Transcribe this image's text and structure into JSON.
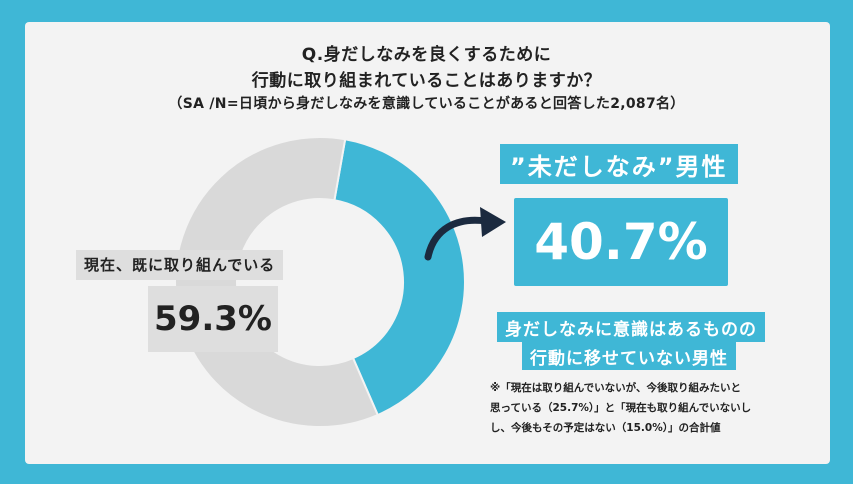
{
  "colors": {
    "background": "#3fb7d6",
    "accent": "#3fb7d6",
    "done": "#d9d9d9",
    "arrow": "#1b2a3f"
  },
  "title": {
    "line1": "Q.身だしなみを良くするために",
    "line2": "行動に取り組まれていることはありますか？",
    "line3": "（SA /N=日頃から身だしなみを意識していることがあると回答した2,087名）"
  },
  "chart_data": {
    "type": "pie",
    "variant": "donut",
    "categories": [
      "現在、既に取り組んでいる",
      "”未だしなみ”男性"
    ],
    "values": [
      59.3,
      40.7
    ],
    "value_labels": [
      "59.3%",
      "40.7%"
    ],
    "colors": [
      "#d9d9d9",
      "#3fb7d6"
    ]
  },
  "labels": {
    "done_label": "現在、既に取り組んでいる",
    "done_pct": "59.3%",
    "gender_label": "”未だしなみ”男性",
    "main_pct": "40.7%",
    "desc_line1": "身だしなみに意識はあるものの",
    "desc_line2": "行動に移せていない男性"
  },
  "note": {
    "line1": "※「現在は取り組んでいないが、今後取り組みたいと",
    "line2": "思っている（25.7%）」と「現在も取り組んでいないし",
    "line3": "し、今後もその予定はない（15.0%）」の合計値"
  }
}
